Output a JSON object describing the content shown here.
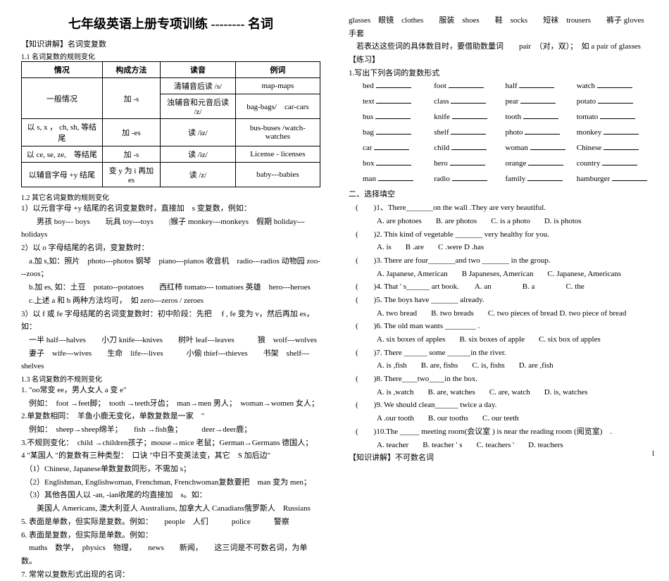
{
  "title": "七年级英语上册专项训练 -------- 名词",
  "heading_knowledge": "【知识讲解】名词变复数",
  "rule11": "1.1 名词复数的规则变化",
  "table": {
    "headers": [
      "情况",
      "构成方法",
      "读音",
      "例词"
    ],
    "rows": [
      [
        "一般情况",
        "加 -s",
        "清辅音后读 /s/",
        "map-maps"
      ],
      [
        "",
        "",
        "浊辅音和元音后读 /z/",
        "bag-bags/　car-cars"
      ],
      [
        "以 s, x ， ch, sh, 等结尾",
        "加 -es",
        "读 /iz/",
        "bus-buses /watch-watches"
      ],
      [
        "以 ce, se, ze,　等结尾",
        "加 -s",
        "读 /iz/",
        "License - licenses"
      ],
      [
        "以辅音字母 +y 结尾",
        "变 y 为 i 再加 es",
        "读 /z/",
        "baby---babies"
      ]
    ]
  },
  "rule12": "1.2 其它名词复数的规则变化",
  "left_lines": [
    "1）以元音字母 +y 结尾的名词变复数时，直接加　s 变复数，例如：",
    "　　男孩 boy--- boys　　玩具 toy---toys　　|猴子 monkey---monkeys　假期 holiday---holidays",
    "2）以 o 字母结尾的名词，变复数时：",
    "　a.加 s,如：照片　photo---photos 钢琴　piano---pianos 收音机　radio---radios 动物园 zoo---zoos；",
    "　b.加 es, 如：土豆　potato--potatoes　　西红柿 tomato--- tomatoes 英雄　hero---heroes",
    "　c.上述 a 和 b 两种方法均可，　如 zero---zeros / zeroes",
    "3）以 f 或 fe 字母结尾的名词变复数时：初中阶段：先把　 f , fe 变为 v，然后再加 es，如：",
    "　一半 half---halves　　小刀 knife---knives　　树叶 leaf---leaves　　　狼　wolf---wolves",
    "　妻子　wife---wives　　生命　life---lives　　　小偷 thief---thieves　　书架　shelf---shelves"
  ],
  "rule13": "1.3 名词复数的不规则变化",
  "left_lines2": [
    "1. \"oo常变 ee，男人女人 a 变 e\"",
    "　例如：　foot →feet脚；　tooth →teeth牙齿；　man→men 男人；　woman→women 女人；",
    "2.单复数相同：　羊鱼小鹿无变化，单数复数是一家　\"",
    "　例如：　sheep→sheep绵羊；　　fish →fish鱼；　　　deer→deer鹿；",
    "3.不规则变化：　child →children孩子；mouse→mice 老鼠；German→Germans 德国人；",
    "4 \"某国人 \"的复数有三种类型：　口诀 \"中日不变英法变，其它　S 加后边\"",
    "　（1）Chinese, Japanese单数复数同形，不需加 s；",
    "　（2）Englishman, Englishwoman, Frenchman, Frenchwoman复数要把　man 变为 men；",
    "　（3）其他各国人以 -an, -ian收尾的均直接加　s。如：",
    "　　美国人 Americans, 澳大利亚人 Australians, 加拿大人 Canadians俄罗斯人　Russians",
    "5. 表面是单数，但实际是复数。例如：　　people　人们　　　police　　　警察",
    "6. 表面是复数，但实际是单数。例如：",
    "　maths　数学，　physics　物理，　　news　　新闻，　　这三词是不可数名词，为单数。",
    "7. 常常以复数形式出现的名词："
  ],
  "right_top": [
    "glasses　眼镜　clothes　　服装　shoes　　鞋　socks　　短袜　trousers　　裤子 gloves　手套",
    "　若表达这些词的具体数目时，要借助数量词　　pair　（对，双）；　如 a pair of glasses",
    "【练习】",
    "1.写出下列各词的复数形式"
  ],
  "words": [
    [
      "bed",
      "foot",
      "half",
      "watch"
    ],
    [
      "text",
      "class",
      "pear",
      "potato"
    ],
    [
      "bus",
      "knife",
      "tooth",
      "tomato"
    ],
    [
      "bag",
      "shelf",
      "photo",
      "monkey"
    ],
    [
      "car",
      "child",
      "woman",
      "Chinese"
    ],
    [
      "box",
      "hero",
      "orange",
      "country"
    ],
    [
      "man",
      "radio",
      "family",
      "hamburger"
    ]
  ],
  "section2": "二、选择填空",
  "questions": [
    {
      "n": "(　　)1、There_______on the wall .They are very beautiful.",
      "opts": [
        "A. are photoes",
        "B. are photos",
        "C. is a photo",
        "D. is photos"
      ]
    },
    {
      "n": "(　　)2. This kind of vegetable _______ very healthy for you.",
      "opts": [
        "A. is",
        "B .are",
        "C .were D .has",
        ""
      ]
    },
    {
      "n": "(　　)3. There are four_______and two _______ in the group.",
      "opts": [
        "A. Japanese, American",
        "B Japaneses, American",
        "C. Japanese, Americans",
        ""
      ]
    },
    {
      "n": "(　　)4. That ' s______ art book.　　A. an　　　　B. a　　　　C. the",
      "opts": []
    },
    {
      "n": "(　　)5. The boys have _______ already.",
      "opts": [
        "A. two bread",
        "B. two breads",
        "C. two pieces of bread D. two piece of bread",
        ""
      ]
    },
    {
      "n": "(　　)6. The old man wants ________ .",
      "opts": [
        "A. six boxes of apples",
        "B. six boxes of apple",
        "C. six box of apples",
        ""
      ]
    },
    {
      "n": "(　　)7. There ______ some ______in the river.",
      "opts": [
        "A. is ,fish",
        "B. are, fishs",
        "C. is, fishs",
        "D. are ,fish"
      ]
    },
    {
      "n": "(　　)8. There____two____in the box.",
      "opts": [
        "A. is ,watch",
        "B. are, watches",
        "C. are, watch",
        "D. is, watches"
      ]
    },
    {
      "n": "(　　)9. We should clean______ twice a day.",
      "opts": [
        "A .our tooth",
        "B. our tooths",
        "C. our teeth",
        ""
      ]
    },
    {
      "n": "(　　)10.The _____ meeting room(会议室 ) is near the reading room (阅览室)　.",
      "opts": [
        "A. teacher",
        "B. teacher ' s",
        "C. teachers '",
        "D. teachers"
      ]
    }
  ],
  "bottom_heading": "【知识讲解】不可数名词",
  "page_num": "1"
}
